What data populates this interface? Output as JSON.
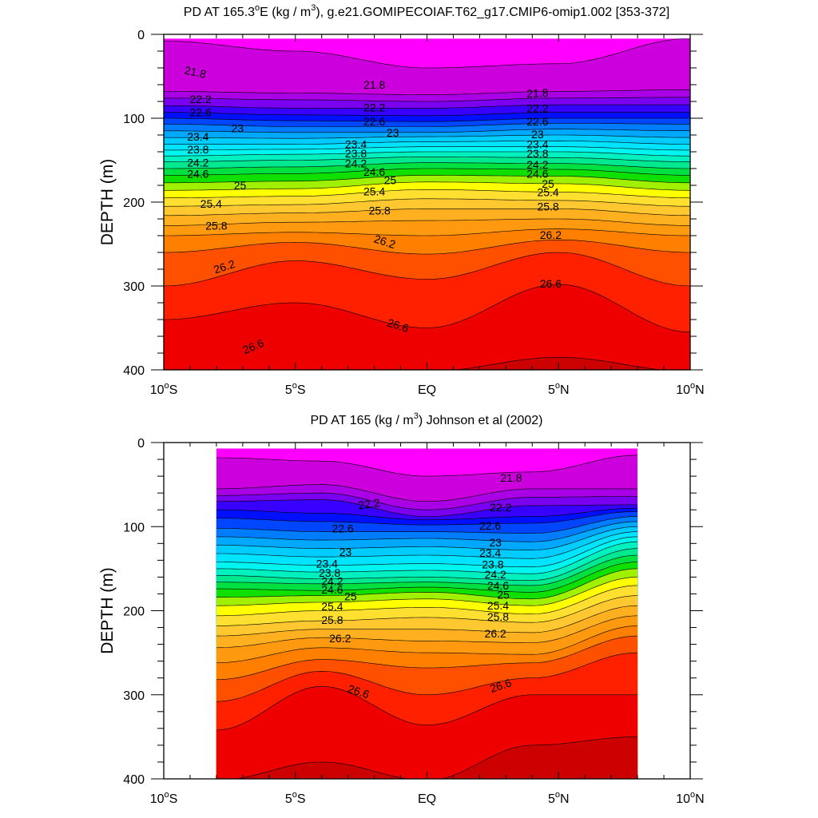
{
  "chart_data": [
    {
      "type": "contour",
      "title_main": "PD AT 165.3",
      "title_deg": "o",
      "title_e": "E (kg / m",
      "title_sup": "3",
      "title_rest": "), g.e21.GOMIPECOIAF.T62_g17.CMIP6-omip1.002 [353-372]",
      "ylabel": "DEPTH (m)",
      "xlim": [
        -10,
        10
      ],
      "ylim": [
        0,
        400
      ],
      "x_data_range": [
        -10,
        10
      ],
      "y_data_range": [
        5,
        400
      ],
      "xticks": [
        {
          "x": -10,
          "num": "10",
          "deg": "o",
          "suf": "S"
        },
        {
          "x": -5,
          "num": "5",
          "deg": "o",
          "suf": "S"
        },
        {
          "x": 0,
          "num": "EQ",
          "deg": "",
          "suf": ""
        },
        {
          "x": 5,
          "num": "5",
          "deg": "o",
          "suf": "N"
        },
        {
          "x": 10,
          "num": "10",
          "deg": "o",
          "suf": "N"
        }
      ],
      "yticks": [
        "0",
        "100",
        "200",
        "300",
        "400"
      ],
      "ytick_values": [
        0,
        100,
        200,
        300,
        400
      ],
      "contour_levels": [
        21.8,
        22.0,
        22.2,
        22.4,
        22.6,
        22.8,
        23.0,
        23.2,
        23.4,
        23.6,
        23.8,
        24.0,
        24.2,
        24.4,
        24.6,
        24.8,
        25.0,
        25.2,
        25.4,
        25.6,
        25.8,
        26.0,
        26.2,
        26.4,
        26.6,
        26.8
      ],
      "contour_depths_x": [
        -10,
        -5,
        0,
        5,
        10
      ],
      "contour_depths": {
        "21.8": [
          8,
          20,
          40,
          35,
          5
        ],
        "22.0": [
          68,
          70,
          72,
          68,
          66
        ],
        "22.2": [
          76,
          78,
          80,
          76,
          75
        ],
        "22.4": [
          85,
          88,
          88,
          84,
          84
        ],
        "22.6": [
          93,
          96,
          97,
          93,
          93
        ],
        "22.8": [
          100,
          103,
          104,
          100,
          100
        ],
        "23.0": [
          107,
          110,
          110,
          106,
          107
        ],
        "23.2": [
          115,
          117,
          117,
          113,
          115
        ],
        "23.4": [
          123,
          124,
          122,
          120,
          123
        ],
        "23.6": [
          131,
          131,
          128,
          127,
          131
        ],
        "23.8": [
          138,
          137,
          134,
          134,
          138
        ],
        "24.0": [
          145,
          143,
          140,
          140,
          145
        ],
        "24.2": [
          152,
          150,
          146,
          147,
          152
        ],
        "24.4": [
          160,
          158,
          153,
          154,
          160
        ],
        "24.6": [
          168,
          166,
          160,
          161,
          168
        ],
        "24.8": [
          177,
          175,
          168,
          169,
          177
        ],
        "25.0": [
          186,
          184,
          176,
          178,
          186
        ],
        "25.2": [
          195,
          193,
          185,
          188,
          195
        ],
        "25.4": [
          205,
          203,
          196,
          198,
          205
        ],
        "25.6": [
          216,
          213,
          208,
          208,
          216
        ],
        "25.8": [
          228,
          224,
          222,
          220,
          228
        ],
        "26.0": [
          240,
          236,
          240,
          232,
          240
        ],
        "26.2": [
          260,
          248,
          262,
          245,
          260
        ],
        "26.4": [
          300,
          270,
          292,
          260,
          300
        ],
        "26.6": [
          340,
          320,
          350,
          298,
          355
        ],
        "26.8": [
          402,
          402,
          402,
          385,
          402
        ]
      },
      "contour_labels": [
        {
          "text": "21.8",
          "x": -8.8,
          "y": 45,
          "rot": 12
        },
        {
          "text": "21.8",
          "x": -2.0,
          "y": 60,
          "rot": 0
        },
        {
          "text": "21.8",
          "x": 4.2,
          "y": 70,
          "rot": -3
        },
        {
          "text": "22.2",
          "x": -8.6,
          "y": 77,
          "rot": 0
        },
        {
          "text": "22.2",
          "x": -2.0,
          "y": 87,
          "rot": 0
        },
        {
          "text": "22.2",
          "x": 4.2,
          "y": 88,
          "rot": 0
        },
        {
          "text": "22.6",
          "x": -8.6,
          "y": 93,
          "rot": 0
        },
        {
          "text": "22.6",
          "x": -2.0,
          "y": 104,
          "rot": 0
        },
        {
          "text": "22.6",
          "x": 4.2,
          "y": 104,
          "rot": 0
        },
        {
          "text": "23",
          "x": -7.2,
          "y": 112,
          "rot": 0
        },
        {
          "text": "23",
          "x": -1.3,
          "y": 117,
          "rot": 0
        },
        {
          "text": "23",
          "x": 4.2,
          "y": 119,
          "rot": 0
        },
        {
          "text": "23.4",
          "x": -8.7,
          "y": 122,
          "rot": 0
        },
        {
          "text": "23.4",
          "x": -2.7,
          "y": 131,
          "rot": 0
        },
        {
          "text": "23.4",
          "x": 4.2,
          "y": 131,
          "rot": 0
        },
        {
          "text": "23.8",
          "x": -8.7,
          "y": 137,
          "rot": 0
        },
        {
          "text": "23.8",
          "x": -2.7,
          "y": 142,
          "rot": 0
        },
        {
          "text": "23.8",
          "x": 4.2,
          "y": 142,
          "rot": 0
        },
        {
          "text": "24.2",
          "x": -8.7,
          "y": 153,
          "rot": 0
        },
        {
          "text": "24.2",
          "x": -2.7,
          "y": 154,
          "rot": 0
        },
        {
          "text": "24.2",
          "x": 4.2,
          "y": 155,
          "rot": 0
        },
        {
          "text": "24.6",
          "x": -8.7,
          "y": 166,
          "rot": 0
        },
        {
          "text": "24.6",
          "x": -2.0,
          "y": 164,
          "rot": 0
        },
        {
          "text": "24.6",
          "x": 4.2,
          "y": 166,
          "rot": 0
        },
        {
          "text": "25",
          "x": -7.1,
          "y": 180,
          "rot": 0
        },
        {
          "text": "25",
          "x": -1.4,
          "y": 174,
          "rot": 0
        },
        {
          "text": "25",
          "x": 4.6,
          "y": 178,
          "rot": 0
        },
        {
          "text": "25.4",
          "x": -8.2,
          "y": 202,
          "rot": 0
        },
        {
          "text": "25.4",
          "x": -2.0,
          "y": 187,
          "rot": 0
        },
        {
          "text": "25.4",
          "x": 4.6,
          "y": 188,
          "rot": 0
        },
        {
          "text": "25.8",
          "x": -8.0,
          "y": 228,
          "rot": 0
        },
        {
          "text": "25.8",
          "x": -1.8,
          "y": 210,
          "rot": 0
        },
        {
          "text": "25.8",
          "x": 4.6,
          "y": 205,
          "rot": 0
        },
        {
          "text": "26.2",
          "x": -7.7,
          "y": 277,
          "rot": -18
        },
        {
          "text": "26.2",
          "x": -1.6,
          "y": 247,
          "rot": 18
        },
        {
          "text": "26.2",
          "x": 4.7,
          "y": 239,
          "rot": 0
        },
        {
          "text": "26.6",
          "x": 4.7,
          "y": 297,
          "rot": 0
        },
        {
          "text": "26.6",
          "x": -1.1,
          "y": 347,
          "rot": 18
        },
        {
          "text": "26.6",
          "x": -6.6,
          "y": 372,
          "rot": -22
        }
      ]
    },
    {
      "type": "contour",
      "title_main": "PD AT 165 (kg / m",
      "title_sup": "3",
      "title_rest": ") Johnson et al (2002)",
      "ylabel": "DEPTH (m)",
      "xlim": [
        -10,
        10
      ],
      "ylim": [
        0,
        400
      ],
      "x_data_range": [
        -8,
        8
      ],
      "y_data_range": [
        7,
        400
      ],
      "xticks": [
        {
          "x": -10,
          "num": "10",
          "deg": "o",
          "suf": "S"
        },
        {
          "x": -5,
          "num": "5",
          "deg": "o",
          "suf": "S"
        },
        {
          "x": 0,
          "num": "EQ",
          "deg": "",
          "suf": ""
        },
        {
          "x": 5,
          "num": "5",
          "deg": "o",
          "suf": "N"
        },
        {
          "x": 10,
          "num": "10",
          "deg": "o",
          "suf": "N"
        }
      ],
      "yticks": [
        "0",
        "100",
        "200",
        "300",
        "400"
      ],
      "ytick_values": [
        0,
        100,
        200,
        300,
        400
      ],
      "contour_levels": [
        21.8,
        22.0,
        22.2,
        22.4,
        22.6,
        22.8,
        23.0,
        23.2,
        23.4,
        23.6,
        23.8,
        24.0,
        24.2,
        24.4,
        24.6,
        24.8,
        25.0,
        25.2,
        25.4,
        25.6,
        25.8,
        26.0,
        26.2,
        26.4,
        26.6,
        26.8
      ],
      "contour_depths_x": [
        -8,
        -4,
        0,
        4,
        8
      ],
      "contour_depths": {
        "21.8": [
          18,
          22,
          40,
          35,
          15
        ],
        "22.0": [
          55,
          50,
          70,
          55,
          55
        ],
        "22.2": [
          63,
          60,
          80,
          65,
          64
        ],
        "22.4": [
          70,
          68,
          88,
          75,
          74
        ],
        "22.6": [
          80,
          84,
          92,
          88,
          78
        ],
        "22.8": [
          90,
          94,
          98,
          96,
          82
        ],
        "23.0": [
          102,
          106,
          106,
          108,
          88
        ],
        "23.2": [
          112,
          116,
          114,
          118,
          94
        ],
        "23.4": [
          122,
          126,
          124,
          128,
          100
        ],
        "23.6": [
          132,
          136,
          134,
          138,
          106
        ],
        "23.8": [
          142,
          146,
          144,
          148,
          112
        ],
        "24.0": [
          150,
          154,
          152,
          156,
          118
        ],
        "24.2": [
          158,
          162,
          160,
          164,
          126
        ],
        "24.4": [
          166,
          168,
          166,
          170,
          134
        ],
        "24.6": [
          174,
          176,
          172,
          178,
          142
        ],
        "24.8": [
          184,
          182,
          178,
          186,
          150
        ],
        "25.0": [
          194,
          190,
          186,
          194,
          160
        ],
        "25.2": [
          206,
          200,
          196,
          204,
          170
        ],
        "25.4": [
          218,
          212,
          208,
          214,
          182
        ],
        "25.6": [
          230,
          222,
          222,
          226,
          194
        ],
        "25.8": [
          244,
          232,
          236,
          238,
          206
        ],
        "26.0": [
          262,
          244,
          250,
          252,
          218
        ],
        "26.2": [
          282,
          258,
          268,
          262,
          230
        ],
        "26.4": [
          308,
          272,
          300,
          280,
          250
        ],
        "26.6": [
          342,
          290,
          336,
          300,
          300
        ],
        "26.8": [
          402,
          380,
          402,
          360,
          350
        ]
      },
      "contour_labels": [
        {
          "text": "21.8",
          "x": 3.2,
          "y": 42,
          "rot": 0
        },
        {
          "text": "22.2",
          "x": -2.2,
          "y": 73,
          "rot": -8
        },
        {
          "text": "22.2",
          "x": 2.8,
          "y": 77,
          "rot": 0
        },
        {
          "text": "22.6",
          "x": -3.2,
          "y": 102,
          "rot": 0
        },
        {
          "text": "22.6",
          "x": 2.4,
          "y": 99,
          "rot": 0
        },
        {
          "text": "23",
          "x": -3.1,
          "y": 130,
          "rot": 0
        },
        {
          "text": "23",
          "x": 2.6,
          "y": 119,
          "rot": 0
        },
        {
          "text": "23.4",
          "x": -3.8,
          "y": 144,
          "rot": 0
        },
        {
          "text": "23.4",
          "x": 2.4,
          "y": 131,
          "rot": 0
        },
        {
          "text": "23.8",
          "x": -3.7,
          "y": 155,
          "rot": 0
        },
        {
          "text": "23.8",
          "x": 2.5,
          "y": 145,
          "rot": 0
        },
        {
          "text": "24.2",
          "x": -3.6,
          "y": 165,
          "rot": 0
        },
        {
          "text": "24.2",
          "x": 2.6,
          "y": 157,
          "rot": 0
        },
        {
          "text": "24.6",
          "x": -3.6,
          "y": 175,
          "rot": 0
        },
        {
          "text": "24.6",
          "x": 2.7,
          "y": 170,
          "rot": 0
        },
        {
          "text": "25",
          "x": -2.9,
          "y": 183,
          "rot": 0
        },
        {
          "text": "25",
          "x": 2.9,
          "y": 181,
          "rot": 0
        },
        {
          "text": "25.4",
          "x": -3.6,
          "y": 195,
          "rot": 0
        },
        {
          "text": "25.4",
          "x": 2.7,
          "y": 194,
          "rot": 0
        },
        {
          "text": "25.8",
          "x": -3.6,
          "y": 211,
          "rot": 0
        },
        {
          "text": "25.8",
          "x": 2.7,
          "y": 207,
          "rot": 0
        },
        {
          "text": "26.2",
          "x": -3.3,
          "y": 233,
          "rot": 0
        },
        {
          "text": "26.2",
          "x": 2.6,
          "y": 227,
          "rot": 0
        },
        {
          "text": "26.6",
          "x": -2.6,
          "y": 296,
          "rot": 18
        },
        {
          "text": "26.6",
          "x": 2.8,
          "y": 289,
          "rot": -18
        }
      ]
    }
  ]
}
